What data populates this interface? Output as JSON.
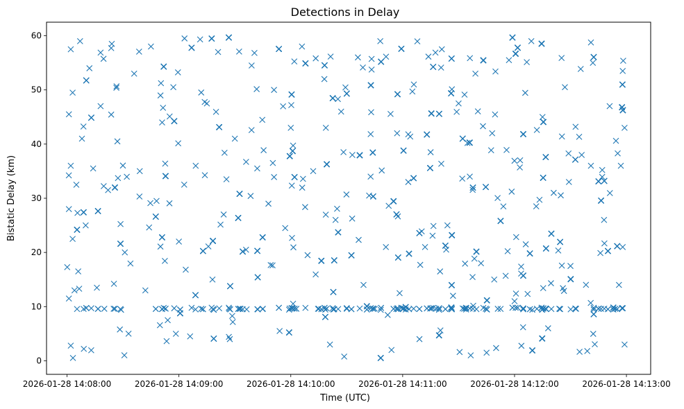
{
  "chart_data": {
    "type": "scatter",
    "title": "Detections in Delay",
    "xlabel": "Time (UTC)",
    "ylabel": "Bistatic Delay (km)",
    "marker": "x",
    "color": "#1f77b4",
    "grid": false,
    "legend": "none",
    "xlim": [
      "2026-01-28 14:07:49",
      "2026-01-28 14:13:13"
    ],
    "ylim": [
      -2.5,
      62.5
    ],
    "x_ticks": [
      "2026-01-28 14:08:00",
      "2026-01-28 14:09:00",
      "2026-01-28 14:10:00",
      "2026-01-28 14:11:00",
      "2026-01-28 14:12:00",
      "2026-01-28 14:13:00"
    ],
    "y_ticks": [
      0,
      10,
      20,
      30,
      40,
      50,
      60
    ],
    "time_range": [
      "2026-01-28 14:08:00",
      "2026-01-28 14:12:59"
    ],
    "delay_range": [
      0.5,
      60
    ],
    "clutter_band": 9.6,
    "points": [
      [
        "2026-01-28 14:08:01",
        45.5
      ],
      [
        "2026-01-28 14:08:01",
        28.0
      ],
      [
        "2026-01-28 14:08:01",
        11.5
      ],
      [
        "2026-01-28 14:08:02",
        57.5
      ],
      [
        "2026-01-28 14:08:02",
        36.0
      ],
      [
        "2026-01-28 14:08:02",
        2.8
      ],
      [
        "2026-01-28 14:08:03",
        49.5
      ],
      [
        "2026-01-28 14:08:03",
        22.5
      ],
      [
        "2026-01-28 14:08:04",
        13.0
      ],
      [
        "2026-01-28 14:08:05",
        32.5
      ],
      [
        "2026-01-28 14:08:06",
        16.5
      ],
      [
        "2026-01-28 14:08:07",
        59.0
      ],
      [
        "2026-01-28 14:08:08",
        41.0
      ],
      [
        "2026-01-28 14:08:09",
        2.2
      ],
      [
        "2026-01-28 14:08:10",
        25.0
      ],
      [
        "2026-01-28 14:08:12",
        54.0
      ],
      [
        "2026-01-28 14:08:14",
        35.5
      ],
      [
        "2026-01-28 14:08:16",
        13.5
      ],
      [
        "2026-01-28 14:08:18",
        47.0
      ],
      [
        "2026-01-28 14:08:20",
        9.6
      ],
      [
        "2026-01-28 14:08:22",
        31.5
      ],
      [
        "2026-01-28 14:08:24",
        58.5
      ],
      [
        "2026-01-28 14:08:25",
        9.6
      ],
      [
        "2026-01-28 14:08:27",
        40.5
      ],
      [
        "2026-01-28 14:08:29",
        9.4
      ],
      [
        "2026-01-28 14:08:31",
        20.0
      ],
      [
        "2026-01-28 14:08:33",
        5.0
      ],
      [
        "2026-01-28 14:08:36",
        53.0
      ],
      [
        "2026-01-28 14:08:39",
        35.0
      ],
      [
        "2026-01-28 14:08:42",
        13.0
      ],
      [
        "2026-01-28 14:08:45",
        58.0
      ],
      [
        "2026-01-28 14:08:48",
        29.5
      ],
      [
        "2026-01-28 14:08:51",
        44.0
      ],
      [
        "2026-01-28 14:08:54",
        7.5
      ],
      [
        "2026-01-28 14:08:57",
        50.5
      ],
      [
        "2026-01-28 14:09:00",
        22.0
      ],
      [
        "2026-01-28 14:09:03",
        59.5
      ],
      [
        "2026-01-28 14:09:06",
        4.5
      ],
      [
        "2026-01-28 14:09:09",
        36.0
      ],
      [
        "2026-01-28 14:09:12",
        9.6
      ],
      [
        "2026-01-28 14:09:15",
        47.5
      ],
      [
        "2026-01-28 14:09:18",
        15.0
      ],
      [
        "2026-01-28 14:09:21",
        57.0
      ],
      [
        "2026-01-28 14:09:24",
        27.0
      ],
      [
        "2026-01-28 14:09:27",
        9.6
      ],
      [
        "2026-01-28 14:09:30",
        41.0
      ],
      [
        "2026-01-28 14:09:33",
        9.6
      ],
      [
        "2026-01-28 14:09:36",
        20.5
      ],
      [
        "2026-01-28 14:09:39",
        54.5
      ],
      [
        "2026-01-28 14:09:42",
        35.5
      ],
      [
        "2026-01-28 14:09:45",
        9.6
      ],
      [
        "2026-01-28 14:09:48",
        29.0
      ],
      [
        "2026-01-28 14:09:51",
        50.0
      ],
      [
        "2026-01-28 14:09:54",
        5.5
      ],
      [
        "2026-01-28 14:09:57",
        24.5
      ],
      [
        "2026-01-28 14:10:00",
        43.0
      ],
      [
        "2026-01-28 14:10:03",
        9.6
      ],
      [
        "2026-01-28 14:10:06",
        58.0
      ],
      [
        "2026-01-28 14:10:09",
        19.5
      ],
      [
        "2026-01-28 14:10:12",
        35.0
      ],
      [
        "2026-01-28 14:10:15",
        9.6
      ],
      [
        "2026-01-28 14:10:18",
        52.0
      ],
      [
        "2026-01-28 14:10:21",
        3.0
      ],
      [
        "2026-01-28 14:10:24",
        26.0
      ],
      [
        "2026-01-28 14:10:27",
        46.0
      ],
      [
        "2026-01-28 14:10:30",
        9.6
      ],
      [
        "2026-01-28 14:10:33",
        38.0
      ],
      [
        "2026-01-28 14:10:36",
        56.0
      ],
      [
        "2026-01-28 14:10:39",
        14.0
      ],
      [
        "2026-01-28 14:10:42",
        30.5
      ],
      [
        "2026-01-28 14:10:45",
        9.6
      ],
      [
        "2026-01-28 14:10:48",
        59.0
      ],
      [
        "2026-01-28 14:10:51",
        21.0
      ],
      [
        "2026-01-28 14:10:54",
        2.0
      ],
      [
        "2026-01-28 14:10:57",
        42.0
      ],
      [
        "2026-01-28 14:11:00",
        9.6
      ],
      [
        "2026-01-28 14:11:03",
        33.0
      ],
      [
        "2026-01-28 14:11:06",
        51.0
      ],
      [
        "2026-01-28 14:11:09",
        4.0
      ],
      [
        "2026-01-28 14:11:12",
        21.0
      ],
      [
        "2026-01-28 14:11:15",
        38.5
      ],
      [
        "2026-01-28 14:11:18",
        9.6
      ],
      [
        "2026-01-28 14:11:21",
        57.5
      ],
      [
        "2026-01-28 14:11:24",
        25.0
      ],
      [
        "2026-01-28 14:11:27",
        12.0
      ],
      [
        "2026-01-28 14:11:30",
        47.5
      ],
      [
        "2026-01-28 14:11:33",
        9.6
      ],
      [
        "2026-01-28 14:11:36",
        34.0
      ],
      [
        "2026-01-28 14:11:39",
        53.0
      ],
      [
        "2026-01-28 14:11:42",
        18.0
      ],
      [
        "2026-01-28 14:11:45",
        1.5
      ],
      [
        "2026-01-28 14:11:48",
        42.0
      ],
      [
        "2026-01-28 14:11:51",
        9.6
      ],
      [
        "2026-01-28 14:11:54",
        28.5
      ],
      [
        "2026-01-28 14:11:57",
        55.5
      ],
      [
        "2026-01-28 14:12:00",
        11.0
      ],
      [
        "2026-01-28 14:12:03",
        37.0
      ],
      [
        "2026-01-28 14:12:06",
        21.5
      ],
      [
        "2026-01-28 14:12:09",
        59.0
      ],
      [
        "2026-01-28 14:12:12",
        9.6
      ],
      [
        "2026-01-28 14:12:15",
        45.0
      ],
      [
        "2026-01-28 14:12:18",
        6.0
      ],
      [
        "2026-01-28 14:12:21",
        31.0
      ],
      [
        "2026-01-28 14:12:24",
        9.6
      ],
      [
        "2026-01-28 14:12:27",
        50.5
      ],
      [
        "2026-01-28 14:12:30",
        17.5
      ],
      [
        "2026-01-28 14:12:33",
        9.6
      ],
      [
        "2026-01-28 14:12:36",
        38.0
      ],
      [
        "2026-01-28 14:12:39",
        1.8
      ],
      [
        "2026-01-28 14:12:42",
        55.0
      ],
      [
        "2026-01-28 14:12:45",
        9.6
      ],
      [
        "2026-01-28 14:12:48",
        26.0
      ],
      [
        "2026-01-28 14:12:51",
        47.0
      ],
      [
        "2026-01-28 14:12:54",
        9.6
      ],
      [
        "2026-01-28 14:12:56",
        14.0
      ],
      [
        "2026-01-28 14:12:57",
        36.0
      ],
      [
        "2026-01-28 14:12:58",
        53.5
      ],
      [
        "2026-01-28 14:12:58",
        21.0
      ],
      [
        "2026-01-28 14:12:59",
        43.0
      ],
      [
        "2026-01-28 14:12:59",
        3.0
      ]
    ]
  }
}
